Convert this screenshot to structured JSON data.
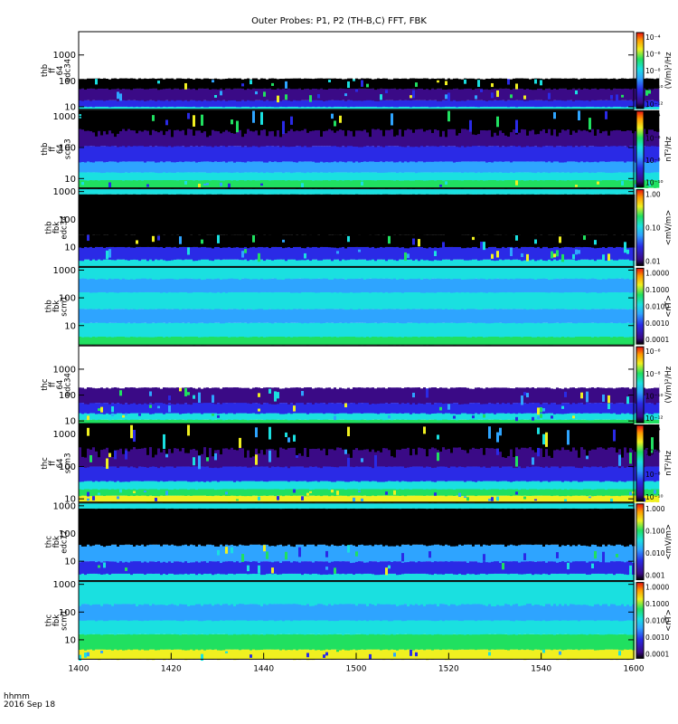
{
  "title": "Outer Probes: P1, P2 (TH-B,C) FFT, FBK",
  "time_axis": {
    "label_line1": "hhmm",
    "label_line2": "2016 Sep 18",
    "ticks": [
      "1400",
      "1420",
      "1440",
      "1500",
      "1520",
      "1540",
      "1600"
    ],
    "range_minutes": [
      0,
      120
    ]
  },
  "colors": {
    "black": "#000000",
    "purple": "#3a0a86",
    "blue": "#2a2ae6",
    "lightblue": "#2ea4ff",
    "cyan": "#1ae0e0",
    "green": "#20e060",
    "yellow": "#f0f020",
    "orange": "#ff9a00",
    "red": "#e81010"
  },
  "chart_data": {
    "type": "heatmap",
    "panels": [
      {
        "ylabel": [
          "thb",
          "ff",
          "64",
          "edc34"
        ],
        "yticks": [
          "1000",
          "100",
          "10"
        ],
        "ylog_range": [
          0.9,
          3.9
        ],
        "data_end_min": 125,
        "colorbar_label": "(V/m)²/Hz",
        "colorbar_ticks": [
          "10⁻⁴",
          "10⁻⁶",
          "10⁻⁸",
          "10⁻¹⁰",
          "10⁻¹²"
        ],
        "bands": [
          {
            "from": 0.9,
            "to": 1.0,
            "color": "cyan",
            "var": 0.05
          },
          {
            "from": 1.0,
            "to": 1.25,
            "color": "blue",
            "var": 0.3
          },
          {
            "from": 1.25,
            "to": 1.7,
            "color": "purple",
            "var": 0.4
          },
          {
            "from": 1.7,
            "to": 2.1,
            "color": "black",
            "var": 0.5
          },
          {
            "from": 2.1,
            "to": 3.9,
            "color": "white",
            "var": 0.03
          }
        ]
      },
      {
        "ylabel": [
          "thb",
          "ff",
          "64",
          "scm3"
        ],
        "yticks": [
          "1000",
          "100",
          "10"
        ],
        "ylog_range": [
          0.7,
          3.2
        ],
        "data_end_min": 125,
        "colorbar_label": "nT²/Hz",
        "colorbar_ticks": [
          "10⁻⁴",
          "10⁻⁶",
          "10⁻⁸",
          "10⁻¹⁰"
        ],
        "bands": [
          {
            "from": 0.7,
            "to": 0.95,
            "color": "green",
            "var": 0.4
          },
          {
            "from": 0.95,
            "to": 1.2,
            "color": "cyan",
            "var": 0.3
          },
          {
            "from": 1.2,
            "to": 1.55,
            "color": "lightblue",
            "var": 0.25
          },
          {
            "from": 1.55,
            "to": 2.05,
            "color": "blue",
            "var": 0.3
          },
          {
            "from": 2.05,
            "to": 2.6,
            "color": "purple",
            "var": 0.3
          },
          {
            "from": 2.6,
            "to": 3.2,
            "color": "black",
            "var": 0.55
          }
        ]
      },
      {
        "ylabel": [
          "thb",
          "fbk",
          "edc34"
        ],
        "yticks": [
          "1000",
          "100",
          "10"
        ],
        "ylog_range": [
          0.3,
          3.1
        ],
        "data_end_min": 120,
        "colorbar_label": "<mV/m>",
        "colorbar_ticks": [
          "1.00",
          "0.10",
          "0.01"
        ],
        "bands": [
          {
            "from": 0.3,
            "to": 0.55,
            "color": "cyan",
            "var": 0.05
          },
          {
            "from": 0.55,
            "to": 1.0,
            "color": "blue",
            "var": 0.5
          },
          {
            "from": 1.0,
            "to": 1.45,
            "color": "black",
            "var": 0.45
          },
          {
            "from": 1.45,
            "to": 2.9,
            "color": "black",
            "var": 0.02
          },
          {
            "from": 2.9,
            "to": 3.1,
            "color": "cyan",
            "var": 0.05
          }
        ]
      },
      {
        "ylabel": [
          "thb",
          "fbk",
          "scm1"
        ],
        "yticks": [
          "1000",
          "100",
          "10"
        ],
        "ylog_range": [
          0.3,
          3.1
        ],
        "data_end_min": 120,
        "colorbar_label": "<nT>",
        "colorbar_ticks": [
          "1.0000",
          "0.1000",
          "0.0100",
          "0.0010",
          "0.0001"
        ],
        "bands": [
          {
            "from": 0.3,
            "to": 0.6,
            "color": "green",
            "var": 0.25
          },
          {
            "from": 0.6,
            "to": 1.1,
            "color": "cyan",
            "var": 0.2
          },
          {
            "from": 1.1,
            "to": 1.6,
            "color": "lightblue",
            "var": 0.2
          },
          {
            "from": 1.6,
            "to": 2.2,
            "color": "cyan",
            "var": 0.2
          },
          {
            "from": 2.2,
            "to": 2.7,
            "color": "lightblue",
            "var": 0.2
          },
          {
            "from": 2.7,
            "to": 3.1,
            "color": "cyan",
            "var": 0.15
          }
        ]
      },
      {
        "ylabel": [
          "thc",
          "ff",
          "64",
          "edc34"
        ],
        "yticks": [
          "1000",
          "100",
          "10"
        ],
        "ylog_range": [
          0.9,
          3.9
        ],
        "data_end_min": 125,
        "colorbar_label": "(V/m)²/Hz",
        "colorbar_ticks": [
          "10⁻⁶",
          "10⁻⁸",
          "10⁻¹⁰",
          "10⁻¹²"
        ],
        "bands": [
          {
            "from": 0.9,
            "to": 1.05,
            "color": "green",
            "var": 0.2
          },
          {
            "from": 1.05,
            "to": 1.3,
            "color": "cyan",
            "var": 0.35
          },
          {
            "from": 1.3,
            "to": 1.7,
            "color": "blue",
            "var": 0.45
          },
          {
            "from": 1.7,
            "to": 2.3,
            "color": "purple",
            "var": 0.5
          },
          {
            "from": 2.3,
            "to": 3.9,
            "color": "white",
            "var": 0.05
          }
        ]
      },
      {
        "ylabel": [
          "thc",
          "ff",
          "64",
          "scm3"
        ],
        "yticks": [
          "1000",
          "100",
          "10"
        ],
        "ylog_range": [
          0.9,
          3.3
        ],
        "data_end_min": 125,
        "colorbar_label": "nT²/Hz",
        "colorbar_ticks": [
          "10⁻⁴",
          "10⁻⁶",
          "10⁻⁸",
          "10⁻¹⁰"
        ],
        "bands": [
          {
            "from": 0.9,
            "to": 1.1,
            "color": "yellow",
            "var": 0.45
          },
          {
            "from": 1.1,
            "to": 1.3,
            "color": "green",
            "var": 0.35
          },
          {
            "from": 1.3,
            "to": 1.55,
            "color": "cyan",
            "var": 0.3
          },
          {
            "from": 1.55,
            "to": 2.0,
            "color": "blue",
            "var": 0.3
          },
          {
            "from": 2.0,
            "to": 2.6,
            "color": "purple",
            "var": 0.35
          },
          {
            "from": 2.6,
            "to": 3.3,
            "color": "black",
            "var": 0.6
          }
        ]
      },
      {
        "ylabel": [
          "thc",
          "fbk",
          "edc12"
        ],
        "yticks": [
          "1000",
          "100",
          "10"
        ],
        "ylog_range": [
          0.3,
          3.1
        ],
        "data_end_min": 120,
        "colorbar_label": "<mV/m>",
        "colorbar_ticks": [
          "1.000",
          "0.100",
          "0.010",
          "0.001"
        ],
        "bands": [
          {
            "from": 0.3,
            "to": 0.55,
            "color": "cyan",
            "var": 0.1
          },
          {
            "from": 0.55,
            "to": 1.0,
            "color": "blue",
            "var": 0.4
          },
          {
            "from": 1.0,
            "to": 1.6,
            "color": "lightblue",
            "var": 0.45
          },
          {
            "from": 1.6,
            "to": 2.9,
            "color": "black",
            "var": 0.25
          },
          {
            "from": 2.9,
            "to": 3.1,
            "color": "cyan",
            "var": 0.05
          }
        ]
      },
      {
        "ylabel": [
          "thc",
          "fbk",
          "scm1"
        ],
        "yticks": [
          "1000",
          "100",
          "10"
        ],
        "ylog_range": [
          0.3,
          3.1
        ],
        "data_end_min": 120,
        "colorbar_label": "<nT>",
        "colorbar_ticks": [
          "1.0000",
          "0.1000",
          "0.0100",
          "0.0010",
          "0.0001"
        ],
        "bands": [
          {
            "from": 0.3,
            "to": 0.65,
            "color": "yellow",
            "var": 0.35
          },
          {
            "from": 0.65,
            "to": 1.2,
            "color": "green",
            "var": 0.25
          },
          {
            "from": 1.2,
            "to": 1.7,
            "color": "cyan",
            "var": 0.2
          },
          {
            "from": 1.7,
            "to": 2.3,
            "color": "lightblue",
            "var": 0.2
          },
          {
            "from": 2.3,
            "to": 3.1,
            "color": "cyan",
            "var": 0.15
          }
        ]
      }
    ]
  }
}
